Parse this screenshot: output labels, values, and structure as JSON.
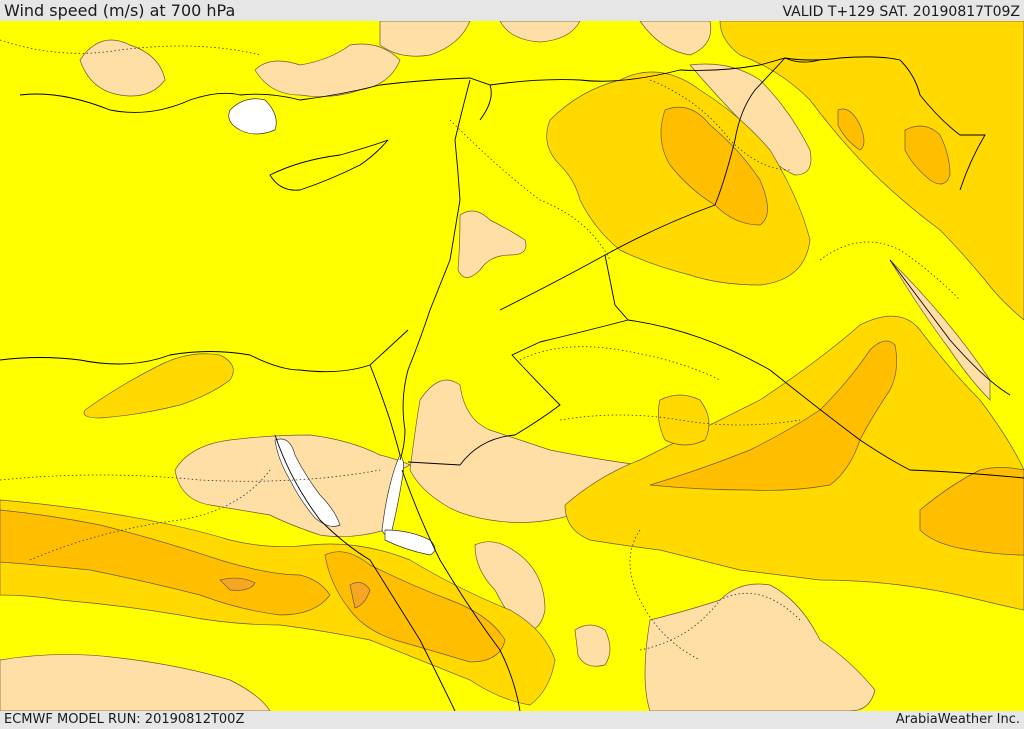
{
  "header": {
    "title": "Wind speed (m/s) at 700 hPa",
    "valid": "VALID T+129 SAT. 20190817T09Z"
  },
  "footer": {
    "run": "ECMWF MODEL RUN: 20190812T00Z",
    "credit": "ArabiaWeather Inc."
  },
  "colors": {
    "base": "#ffff00",
    "light": "#ffdfa6",
    "mid": "#ffd900",
    "orange": "#ffbf00",
    "dark": "#f5a623",
    "water": "#ffffff",
    "contour": "#6b5a3a",
    "border": "#000000"
  }
}
